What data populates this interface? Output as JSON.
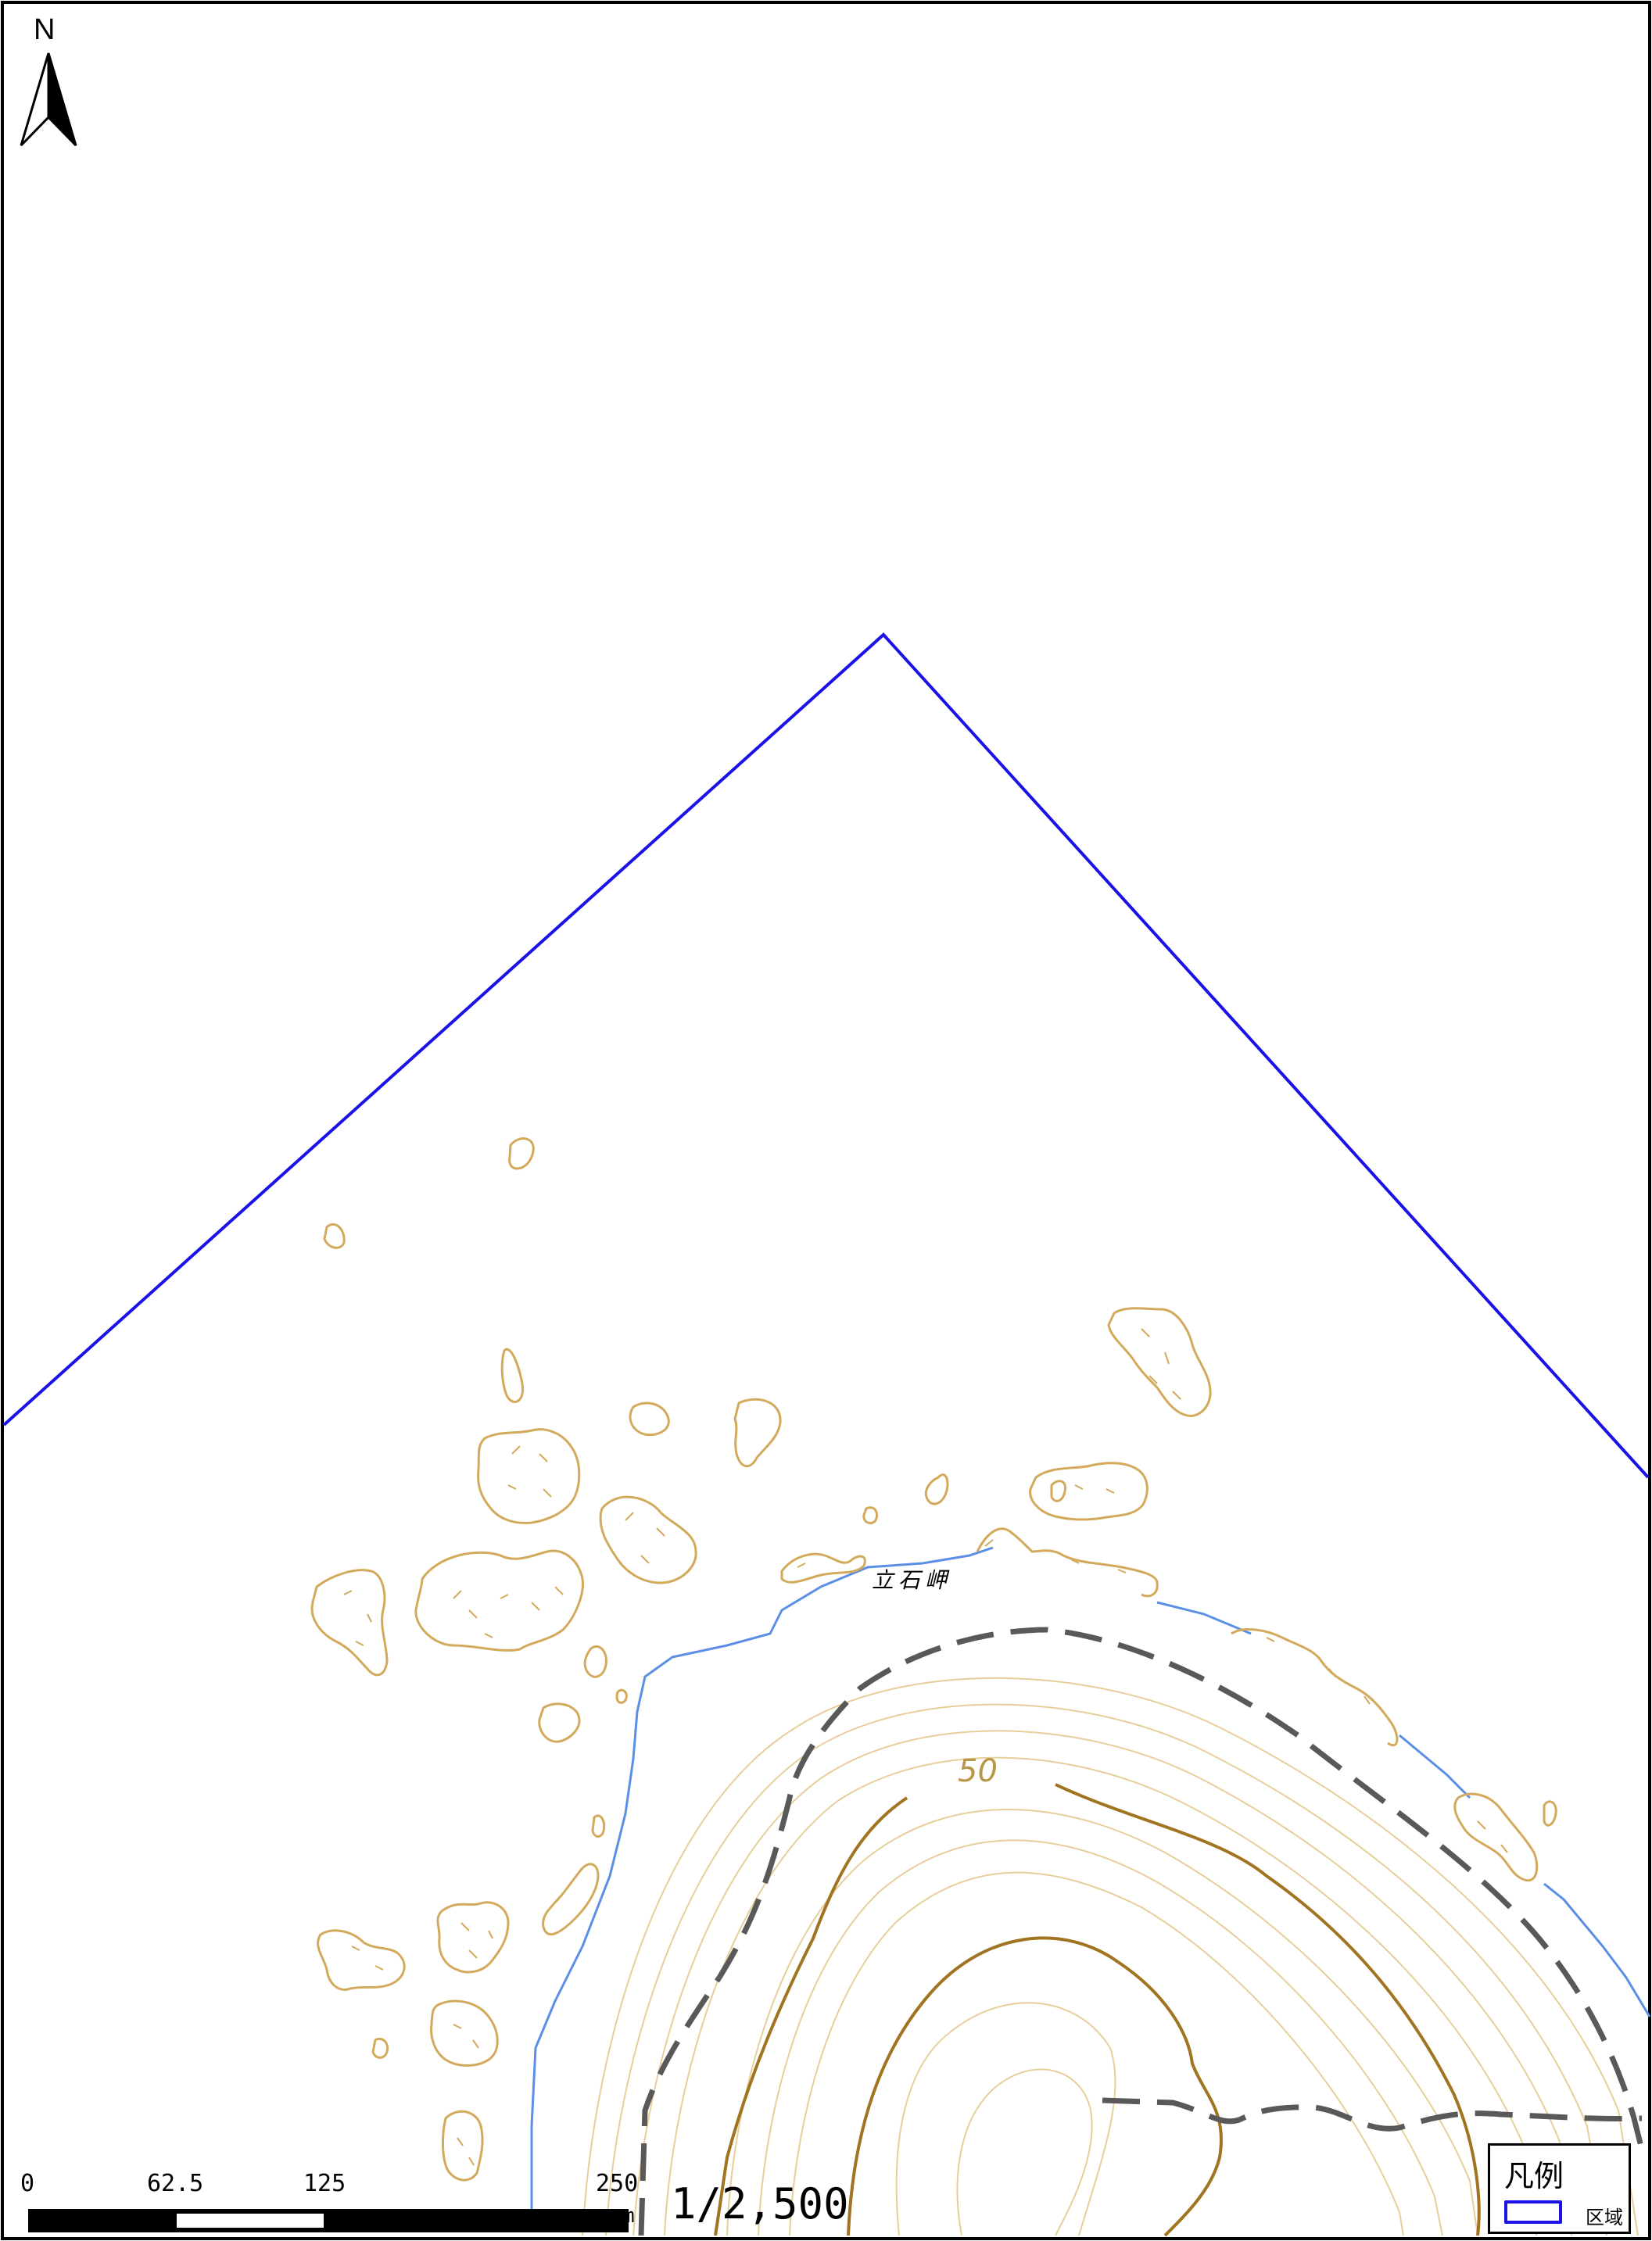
{
  "north_arrow": {
    "letter": "N"
  },
  "place_name": "立石岬",
  "contour_label": "50",
  "scale_bar": {
    "ticks": [
      "0",
      "62.5",
      "125",
      "250"
    ],
    "unit": "m",
    "ratio": "1/2,500"
  },
  "legend": {
    "title": "凡例",
    "items": [
      {
        "label": "区域",
        "color": "#1a12e6"
      }
    ]
  },
  "colors": {
    "boundary": "#1a12e6",
    "rock_outline": "#d3a95c",
    "contour_minor": "#e6cf9a",
    "contour_major": "#a07420",
    "coastline": "#5b8fe6",
    "path_dashed": "#595959"
  }
}
